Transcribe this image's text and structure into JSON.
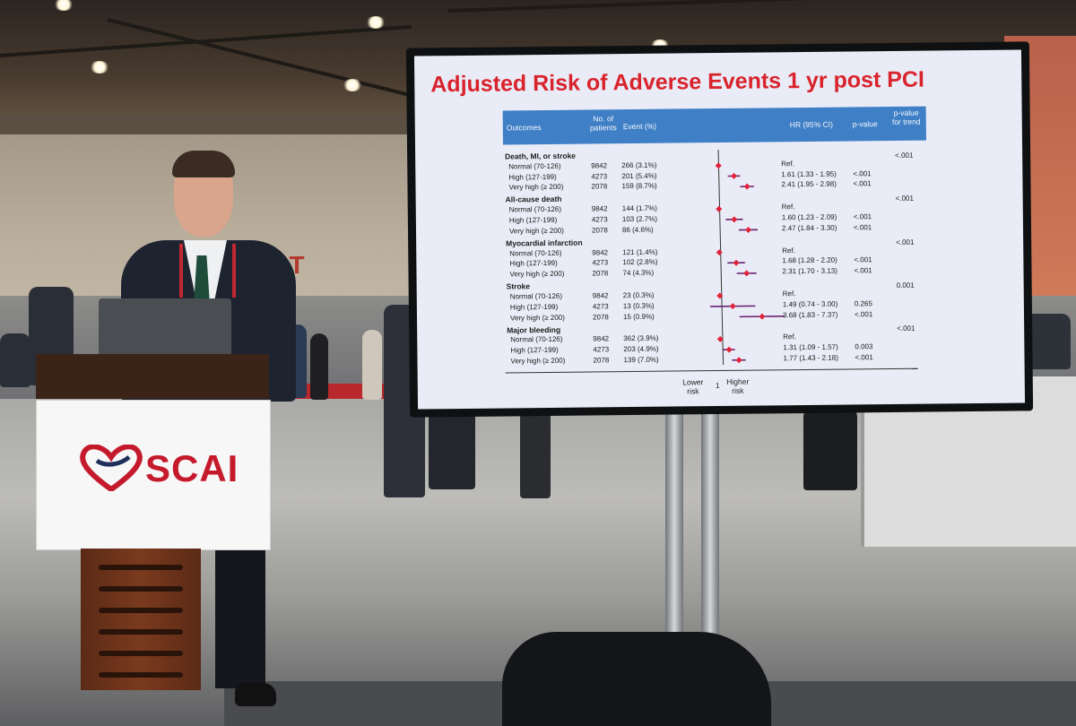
{
  "podium": {
    "brand_text": "SCAI"
  },
  "background": {
    "exit_sign": "XIT"
  },
  "slide": {
    "title": "Adjusted Risk of Adverse Events 1 yr post PCI",
    "headers": {
      "outcomes": "Outcomes",
      "patients": "No. of patients",
      "event": "Event (%)",
      "hr": "HR (95% CI)",
      "pvalue": "p-value",
      "trend": "p-value for trend"
    },
    "axis": {
      "lower": "Lower risk",
      "one": "1",
      "higher": "Higher risk"
    },
    "sections": [
      {
        "name": "Death, MI, or stroke",
        "trend": "<.001",
        "rows": [
          {
            "label": "Normal (70-126)",
            "n": "9842",
            "event": "266 (3.1%)",
            "hr": "Ref.",
            "p": "",
            "hr_val": 1.0,
            "lo": 1.0,
            "hi": 1.0
          },
          {
            "label": "High (127-199)",
            "n": "4273",
            "event": "201 (5.4%)",
            "hr": "1.61 (1.33 - 1.95)",
            "p": "<.001",
            "hr_val": 1.61,
            "lo": 1.33,
            "hi": 1.95
          },
          {
            "label": "Very high (≥ 200)",
            "n": "2078",
            "event": "159 (8.7%)",
            "hr": "2.41 (1.95 - 2.98)",
            "p": "<.001",
            "hr_val": 2.41,
            "lo": 1.95,
            "hi": 2.98
          }
        ]
      },
      {
        "name": "All-cause death",
        "trend": "<.001",
        "rows": [
          {
            "label": "Normal (70-126)",
            "n": "9842",
            "event": "144 (1.7%)",
            "hr": "Ref.",
            "p": "",
            "hr_val": 1.0,
            "lo": 1.0,
            "hi": 1.0
          },
          {
            "label": "High (127-199)",
            "n": "4273",
            "event": "103 (2.7%)",
            "hr": "1.60 (1.23 - 2.09)",
            "p": "<.001",
            "hr_val": 1.6,
            "lo": 1.23,
            "hi": 2.09
          },
          {
            "label": "Very high (≥ 200)",
            "n": "2078",
            "event": "86 (4.6%)",
            "hr": "2.47 (1.84 - 3.30)",
            "p": "<.001",
            "hr_val": 2.47,
            "lo": 1.84,
            "hi": 3.3
          }
        ]
      },
      {
        "name": "Myocardial infarction",
        "trend": "<.001",
        "rows": [
          {
            "label": "Normal (70-126)",
            "n": "9842",
            "event": "121 (1.4%)",
            "hr": "Ref.",
            "p": "",
            "hr_val": 1.0,
            "lo": 1.0,
            "hi": 1.0
          },
          {
            "label": "High (127-199)",
            "n": "4273",
            "event": "102 (2.8%)",
            "hr": "1.68 (1.28 - 2.20)",
            "p": "<.001",
            "hr_val": 1.68,
            "lo": 1.28,
            "hi": 2.2
          },
          {
            "label": "Very high (≥ 200)",
            "n": "2078",
            "event": "74 (4.3%)",
            "hr": "2.31 (1.70 - 3.13)",
            "p": "<.001",
            "hr_val": 2.31,
            "lo": 1.7,
            "hi": 3.13
          }
        ]
      },
      {
        "name": "Stroke",
        "trend": "0.001",
        "rows": [
          {
            "label": "Normal (70-126)",
            "n": "9842",
            "event": "23 (0.3%)",
            "hr": "Ref.",
            "p": "",
            "hr_val": 1.0,
            "lo": 1.0,
            "hi": 1.0
          },
          {
            "label": "High (127-199)",
            "n": "4273",
            "event": "13 (0.3%)",
            "hr": "1.49 (0.74 - 3.00)",
            "p": "0.265",
            "hr_val": 1.49,
            "lo": 0.74,
            "hi": 3.0
          },
          {
            "label": "Very high (≥ 200)",
            "n": "2078",
            "event": "15 (0.9%)",
            "hr": "3.68 (1.83 - 7.37)",
            "p": "<.001",
            "hr_val": 3.68,
            "lo": 1.83,
            "hi": 7.37
          }
        ]
      },
      {
        "name": "Major bleeding",
        "trend": "<.001",
        "rows": [
          {
            "label": "Normal (70-126)",
            "n": "9842",
            "event": "362 (3.9%)",
            "hr": "Ref.",
            "p": "",
            "hr_val": 1.0,
            "lo": 1.0,
            "hi": 1.0
          },
          {
            "label": "High (127-199)",
            "n": "4273",
            "event": "203 (4.9%)",
            "hr": "1.31 (1.09 - 1.57)",
            "p": "0.003",
            "hr_val": 1.31,
            "lo": 1.09,
            "hi": 1.57
          },
          {
            "label": "Very high (≥ 200)",
            "n": "2078",
            "event": "139 (7.0%)",
            "hr": "1.77 (1.43 - 2.18)",
            "p": "<.001",
            "hr_val": 1.77,
            "lo": 1.43,
            "hi": 2.18
          }
        ]
      }
    ]
  },
  "colors": {
    "title_red": "#d9232d",
    "header_blue": "#3f7fc6",
    "marker_red": "#e0223a",
    "ci_purple": "#6a1f6e",
    "scai_red": "#c51a2c"
  }
}
